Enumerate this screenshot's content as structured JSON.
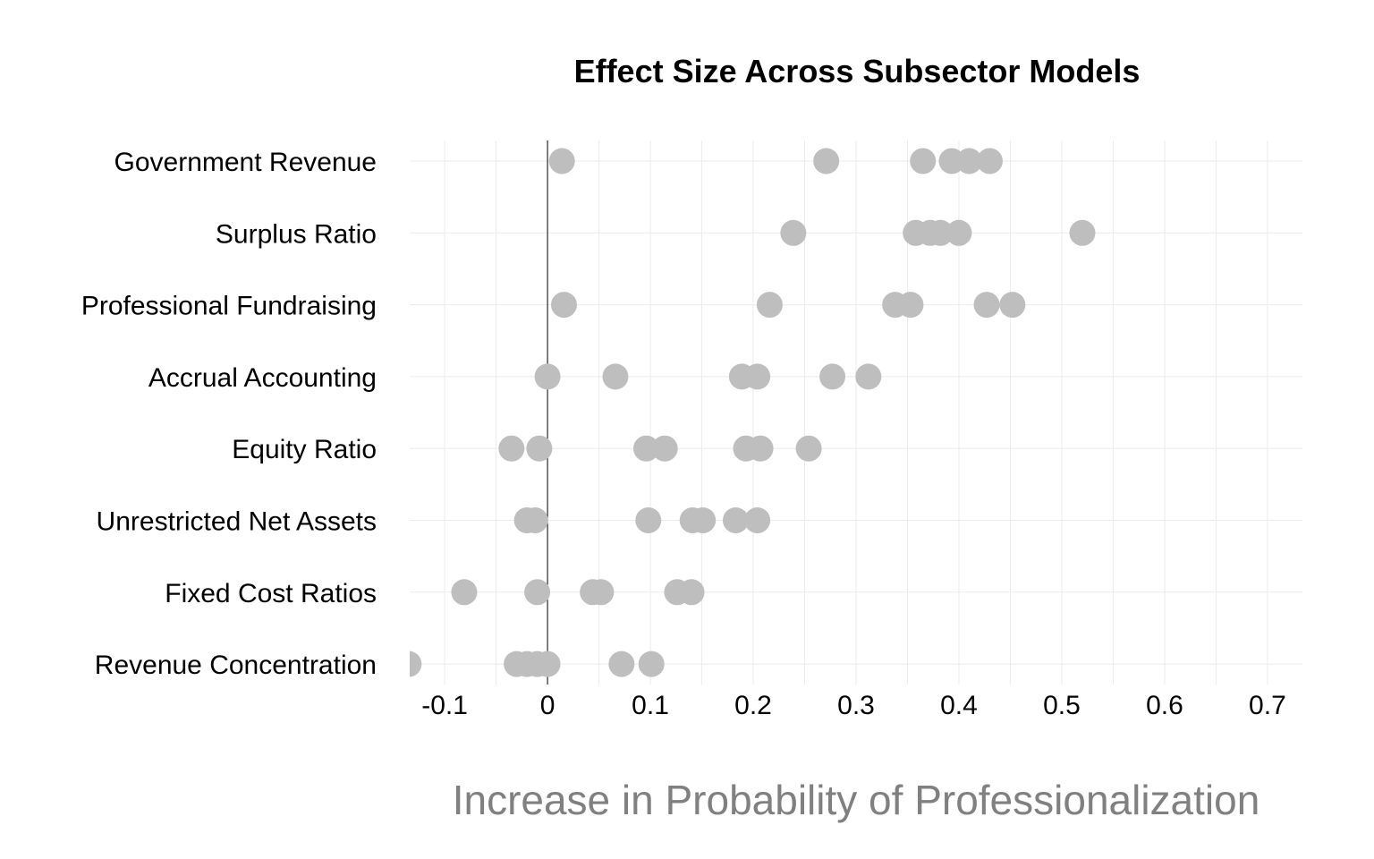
{
  "chart_data": {
    "type": "scatter",
    "title": "Effect Size Across Subsector Models",
    "xlabel": "Increase in Probability of Professionalization",
    "ylabel": "",
    "xlim": [
      -0.134,
      0.734
    ],
    "xticks": [
      -0.1,
      0,
      0.1,
      0.2,
      0.3,
      0.4,
      0.5,
      0.6,
      0.7
    ],
    "xtick_labels": [
      "-0.1",
      "0",
      "0.1",
      "0.2",
      "0.3",
      "0.4",
      "0.5",
      "0.6",
      "0.7"
    ],
    "reference_line_x": 0,
    "point_color": "#bebebe",
    "categories": [
      "Government Revenue",
      "Surplus Ratio",
      "Professional Fundraising",
      "Accrual Accounting",
      "Equity Ratio",
      "Unrestricted Net Assets",
      "Fixed Cost Ratios",
      "Revenue Concentration"
    ],
    "series": [
      {
        "name": "Government Revenue",
        "values": [
          0.014,
          0.271,
          0.365,
          0.393,
          0.41,
          0.43
        ]
      },
      {
        "name": "Surplus Ratio",
        "values": [
          0.239,
          0.358,
          0.372,
          0.382,
          0.4,
          0.52
        ]
      },
      {
        "name": "Professional Fundraising",
        "values": [
          0.016,
          0.216,
          0.338,
          0.353,
          0.427,
          0.452
        ]
      },
      {
        "name": "Accrual Accounting",
        "values": [
          0.0,
          0.066,
          0.189,
          0.204,
          0.277,
          0.312
        ]
      },
      {
        "name": "Equity Ratio",
        "values": [
          -0.035,
          -0.008,
          0.096,
          0.114,
          0.193,
          0.207,
          0.254
        ]
      },
      {
        "name": "Unrestricted Net Assets",
        "values": [
          -0.02,
          -0.012,
          0.098,
          0.141,
          0.151,
          0.183,
          0.204
        ]
      },
      {
        "name": "Fixed Cost Ratios",
        "values": [
          -0.081,
          -0.01,
          0.044,
          0.052,
          0.126,
          0.14
        ]
      },
      {
        "name": "Revenue Concentration",
        "values": [
          -0.135,
          -0.03,
          -0.02,
          -0.01,
          0.0,
          0.072,
          0.101
        ]
      }
    ]
  }
}
